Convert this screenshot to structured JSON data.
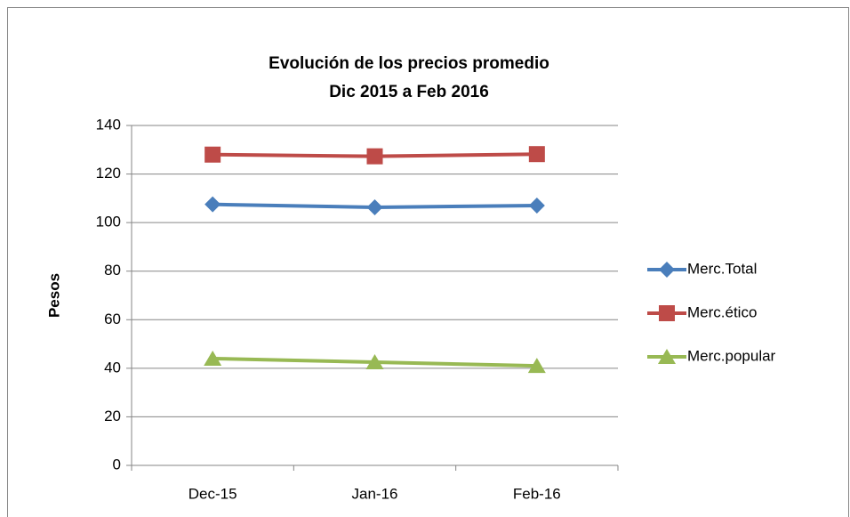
{
  "chart_data": {
    "type": "line",
    "title": "Evolución de los precios promedio",
    "subtitle": "Dic  2015 a Feb 2016",
    "y_label": "Pesos",
    "categories": [
      "Dec-15",
      "Jan-16",
      "Feb-16"
    ],
    "series": [
      {
        "name": "Merc.Total",
        "color": "#4a7ebb",
        "marker": "diamond",
        "values": [
          107.5,
          106.3,
          107
        ]
      },
      {
        "name": "Merc.ético",
        "color": "#be4b48",
        "marker": "square",
        "values": [
          128,
          127.3,
          128.2
        ]
      },
      {
        "name": "Merc.popular",
        "color": "#98b954",
        "marker": "triangle",
        "values": [
          44,
          42.5,
          41
        ]
      }
    ],
    "ylim": [
      0,
      140
    ],
    "yticks": [
      0,
      20,
      40,
      60,
      80,
      100,
      120,
      140
    ],
    "grid": true,
    "legend": "right"
  }
}
